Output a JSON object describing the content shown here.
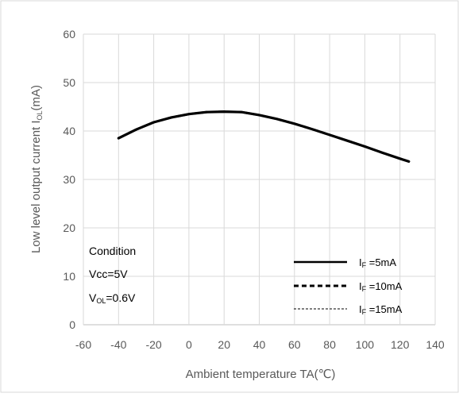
{
  "chart_data": {
    "type": "line",
    "xlabel": "Ambient temperature TA(℃)",
    "ylabel_main": "Low level output current I",
    "ylabel_sub": "OL",
    "ylabel_unit": "(mA)",
    "xlim": [
      -60,
      140
    ],
    "ylim": [
      0,
      60
    ],
    "x_ticks": [
      -60,
      -40,
      -20,
      0,
      20,
      40,
      60,
      80,
      100,
      120,
      140
    ],
    "y_ticks": [
      0,
      10,
      20,
      30,
      40,
      50,
      60
    ],
    "grid": true,
    "legend_position": "bottom-right",
    "series": [
      {
        "name_main": "I",
        "name_sub": "F",
        "name_rest": " =5mA",
        "style": "solid-thick",
        "x": [
          -40,
          -30,
          -20,
          -10,
          0,
          10,
          20,
          30,
          40,
          50,
          60,
          70,
          80,
          90,
          100,
          110,
          120,
          125
        ],
        "y": [
          38.5,
          40.3,
          41.8,
          42.8,
          43.5,
          43.9,
          44.0,
          43.9,
          43.3,
          42.5,
          41.5,
          40.4,
          39.2,
          38.0,
          36.8,
          35.5,
          34.3,
          33.7
        ]
      },
      {
        "name_main": "I",
        "name_sub": "F",
        "name_rest": " =10mA",
        "style": "dashed-thick",
        "x": [
          -40,
          -30,
          -20,
          -10,
          0,
          10,
          20,
          30,
          40,
          50,
          60,
          70,
          80,
          90,
          100,
          110,
          120,
          125
        ],
        "y": [
          38.5,
          40.3,
          41.8,
          42.8,
          43.5,
          43.9,
          44.0,
          43.9,
          43.3,
          42.5,
          41.5,
          40.4,
          39.2,
          38.0,
          36.8,
          35.5,
          34.3,
          33.7
        ]
      },
      {
        "name_main": "I",
        "name_sub": "F",
        "name_rest": " =15mA",
        "style": "dashed-thin",
        "x": [
          -40,
          -30,
          -20,
          -10,
          0,
          10,
          20,
          30,
          40,
          50,
          60,
          70,
          80,
          90,
          100,
          110,
          120,
          125
        ],
        "y": [
          38.5,
          40.3,
          41.8,
          42.8,
          43.5,
          43.9,
          44.0,
          43.9,
          43.3,
          42.5,
          41.5,
          40.4,
          39.2,
          38.0,
          36.8,
          35.5,
          34.3,
          33.7
        ]
      }
    ],
    "annotation": {
      "line1": "Condition",
      "line2": "Vcc=5V",
      "line3_main": "V",
      "line3_sub": "OL",
      "line3_rest": "=0.6V"
    }
  }
}
